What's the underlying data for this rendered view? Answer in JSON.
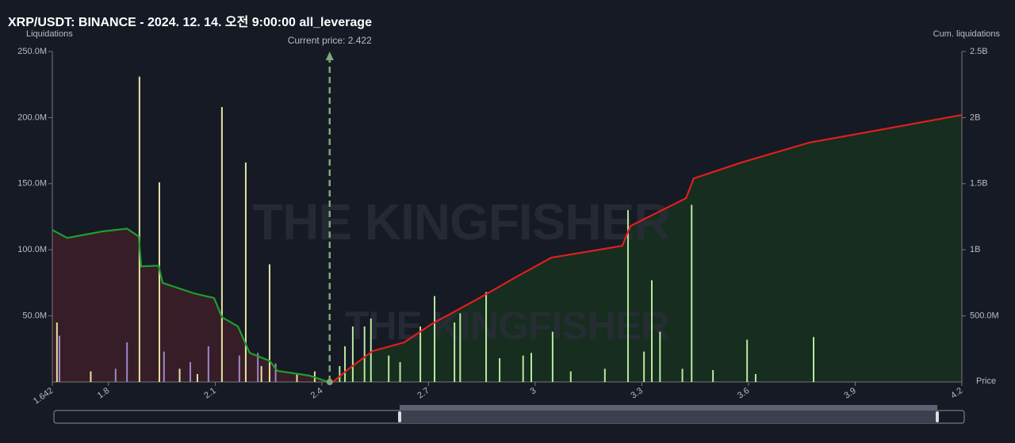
{
  "chart_data": {
    "type": "bar",
    "title": "XRP/USDT: BINANCE - 2024. 12. 14. 오전 9:00:00 all_leverage",
    "y_label": "Liquidations",
    "y2_label": "Cum. liquidations",
    "x_label": "Price",
    "watermark": "THE KINGFISHER",
    "annotation": {
      "value": 2.422,
      "label": "Current price: 2.422",
      "color": "#7fa878"
    },
    "xlim": [
      1.642,
      4.2
    ],
    "xticks": [
      1.642,
      1.8,
      2.1,
      2.4,
      2.7,
      3,
      3.3,
      3.6,
      3.9,
      4.2
    ],
    "ylim": [
      0,
      250000000
    ],
    "yticks": [
      {
        "value": 50000000,
        "label": "50.0M"
      },
      {
        "value": 100000000,
        "label": "100.0M"
      },
      {
        "value": 150000000,
        "label": "150.0M"
      },
      {
        "value": 200000000,
        "label": "200.0M"
      },
      {
        "value": 250000000,
        "label": "250.0M"
      }
    ],
    "y2lim": [
      0,
      2500000000
    ],
    "y2ticks": [
      {
        "value": 500000000,
        "label": "500.0M"
      },
      {
        "value": 1000000000,
        "label": "1B"
      },
      {
        "value": 1500000000,
        "label": "1.5B"
      },
      {
        "value": 2000000000,
        "label": "2B"
      },
      {
        "value": 2500000000,
        "label": "2.5B"
      }
    ],
    "series": [
      {
        "type": "bar",
        "color": "#e6e3a2",
        "x": [
          1.655,
          1.887,
          1.943,
          2.119,
          2.186,
          2.253,
          1.75,
          2.0,
          2.05,
          2.23,
          2.33,
          2.38
        ],
        "values": [
          45000000,
          231000000,
          151000000,
          208000000,
          166000000,
          89000000,
          8000000,
          10000000,
          6000000,
          12000000,
          6000000,
          8000000
        ]
      },
      {
        "type": "bar",
        "color": "#9a88c9",
        "x": [
          1.662,
          1.852,
          1.956,
          2.081,
          2.168,
          2.22,
          1.82,
          2.03,
          2.27
        ],
        "values": [
          35000000,
          30000000,
          23000000,
          27000000,
          20000000,
          22000000,
          10000000,
          15000000,
          14000000
        ]
      },
      {
        "type": "bar",
        "color": "#b9e8a0",
        "x": [
          2.465,
          2.487,
          2.52,
          2.538,
          2.588,
          2.677,
          2.717,
          2.773,
          2.789,
          2.862,
          2.966,
          2.989,
          3.049,
          3.196,
          3.261,
          3.306,
          3.328,
          3.351,
          3.414,
          3.44,
          3.596,
          3.783,
          2.45,
          2.62,
          2.9,
          3.1,
          3.5,
          3.62
        ],
        "values": [
          27000000,
          42000000,
          42000000,
          48000000,
          20000000,
          42000000,
          65000000,
          45000000,
          52000000,
          68000000,
          20000000,
          22000000,
          38000000,
          10000000,
          130000000,
          23000000,
          77000000,
          38000000,
          10000000,
          134000000,
          32000000,
          34000000,
          12000000,
          15000000,
          18000000,
          8000000,
          9000000,
          6000000
        ]
      },
      {
        "type": "line",
        "axis": "y2",
        "color": "#1f9e2c",
        "fill": "#3b1e28",
        "x": [
          1.642,
          1.684,
          1.785,
          1.852,
          1.885,
          1.892,
          1.941,
          1.952,
          2.041,
          2.097,
          2.119,
          2.164,
          2.197,
          2.253,
          2.275,
          2.365,
          2.418
        ],
        "values": [
          1150000000,
          1090000000,
          1140000000,
          1160000000,
          1100000000,
          875000000,
          880000000,
          750000000,
          670000000,
          635000000,
          490000000,
          420000000,
          220000000,
          160000000,
          84000000,
          48000000,
          0
        ]
      },
      {
        "type": "line",
        "axis": "y2",
        "color": "#e01e1e",
        "fill": "#16301f",
        "x": [
          2.431,
          2.476,
          2.543,
          2.632,
          2.71,
          2.833,
          2.944,
          3.045,
          3.245,
          3.268,
          3.424,
          3.446,
          3.58,
          3.77,
          4.2
        ],
        "values": [
          0,
          100000000,
          234000000,
          300000000,
          440000000,
          620000000,
          790000000,
          940000000,
          1030000000,
          1180000000,
          1390000000,
          1540000000,
          1660000000,
          1810000000,
          2020000000
        ]
      }
    ]
  }
}
